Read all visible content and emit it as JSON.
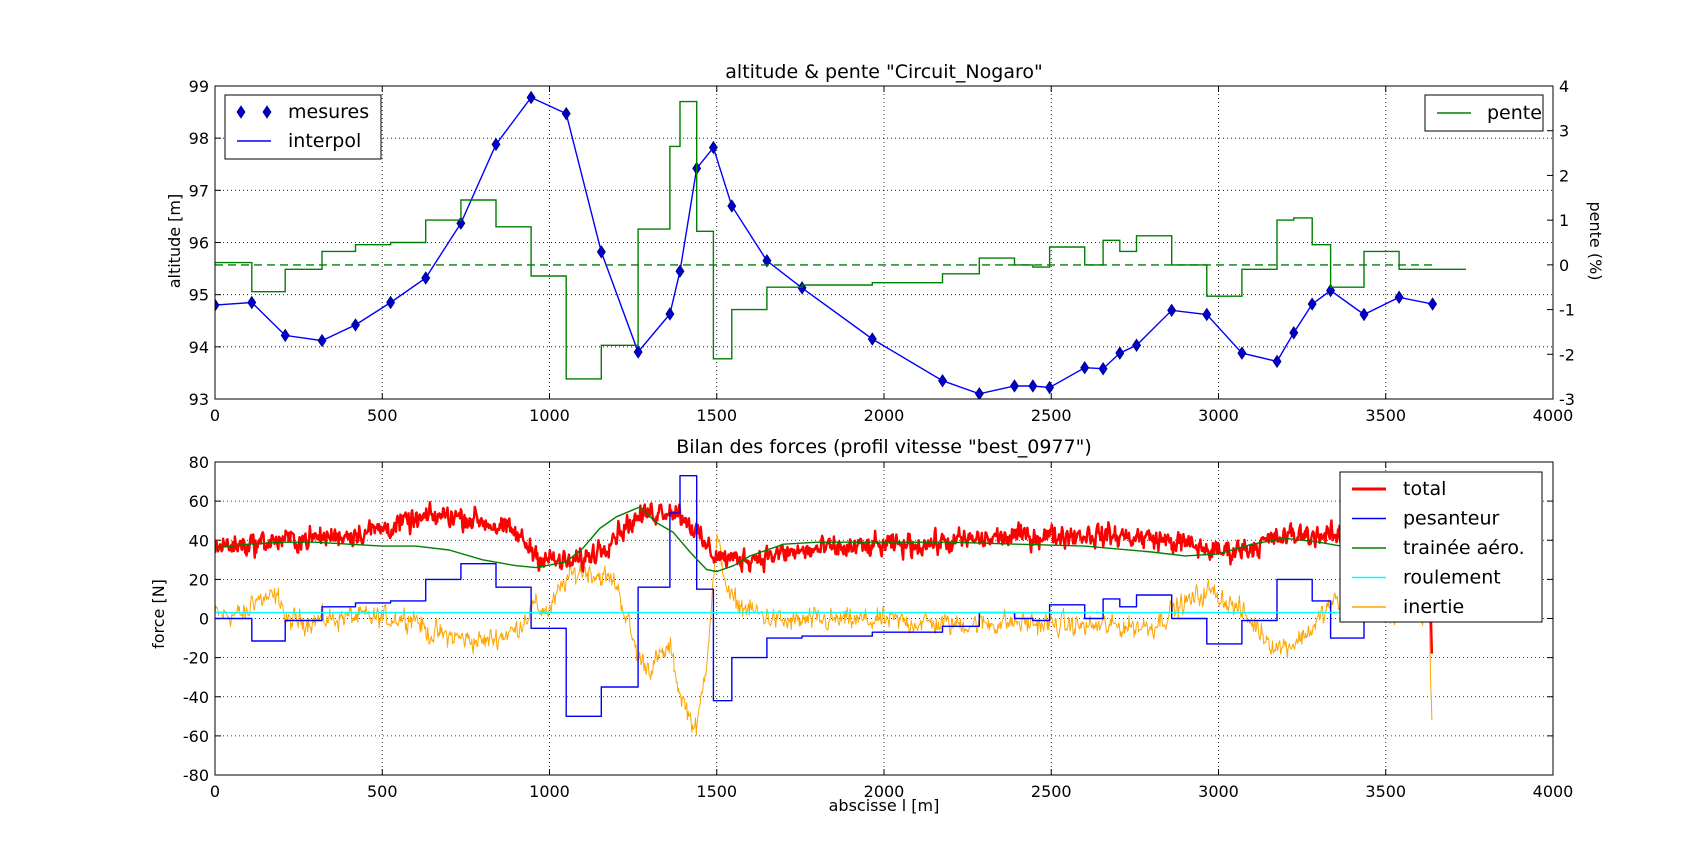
{
  "chart_data": [
    {
      "type": "line",
      "title": "altitude & pente \"Circuit_Nogaro\"",
      "xlabel": "",
      "ylabel": "altitude [m]",
      "y2label": "pente (%)",
      "xlim": [
        0,
        4000
      ],
      "ylim": [
        93,
        99
      ],
      "y2lim": [
        -3,
        4
      ],
      "xticks": [
        0,
        500,
        1000,
        1500,
        2000,
        2500,
        3000,
        3500,
        4000
      ],
      "yticks": [
        93,
        94,
        95,
        96,
        97,
        98,
        99
      ],
      "y2ticks": [
        -3,
        -2,
        -1,
        0,
        1,
        2,
        3,
        4
      ],
      "grid": true,
      "legends": [
        {
          "placement": "upper-left",
          "entries": [
            {
              "label": "mesures",
              "color": "#0000cc",
              "marker": "diamond"
            },
            {
              "label": "interpol",
              "color": "#0000ff",
              "marker": "line"
            }
          ]
        },
        {
          "placement": "upper-right",
          "entries": [
            {
              "label": "pente",
              "color": "#008000",
              "marker": "line"
            }
          ]
        }
      ],
      "series": [
        {
          "name": "mesures",
          "axis": "left",
          "color": "#0000ff",
          "style": "line+diamond",
          "x": [
            0,
            110,
            210,
            320,
            420,
            525,
            630,
            735,
            840,
            945,
            1050,
            1155,
            1265,
            1360,
            1390,
            1440,
            1490,
            1545,
            1650,
            1755,
            1965,
            2175,
            2285,
            2390,
            2445,
            2495,
            2600,
            2655,
            2705,
            2755,
            2860,
            2965,
            3070,
            3175,
            3225,
            3280,
            3335,
            3435,
            3540,
            3640
          ],
          "y": [
            94.8,
            94.85,
            94.22,
            94.12,
            94.42,
            94.85,
            95.32,
            96.37,
            97.88,
            98.78,
            98.47,
            95.82,
            93.9,
            94.63,
            95.45,
            97.42,
            97.82,
            96.7,
            95.65,
            95.13,
            94.15,
            93.35,
            93.1,
            93.25,
            93.25,
            93.22,
            93.6,
            93.58,
            93.88,
            94.03,
            94.7,
            94.62,
            93.88,
            93.72,
            94.27,
            94.82,
            95.08,
            94.62,
            94.95,
            94.82
          ]
        },
        {
          "name": "pente",
          "axis": "right",
          "color": "#008000",
          "style": "step",
          "x": [
            0,
            110,
            210,
            320,
            420,
            525,
            630,
            735,
            840,
            945,
            1050,
            1155,
            1265,
            1360,
            1390,
            1440,
            1490,
            1545,
            1650,
            1755,
            1965,
            2175,
            2285,
            2390,
            2445,
            2495,
            2600,
            2655,
            2705,
            2755,
            2860,
            2965,
            3070,
            3175,
            3225,
            3280,
            3335,
            3435,
            3540,
            3640
          ],
          "y": [
            0.05,
            -0.6,
            -0.1,
            0.3,
            0.45,
            0.5,
            1.0,
            1.45,
            0.85,
            -0.25,
            -2.55,
            -1.8,
            0.8,
            2.65,
            3.65,
            0.75,
            -2.1,
            -1.0,
            -0.5,
            -0.45,
            -0.4,
            -0.2,
            0.15,
            0.0,
            -0.05,
            0.4,
            0.0,
            0.55,
            0.3,
            0.65,
            0.0,
            -0.7,
            -0.1,
            1.0,
            1.05,
            0.45,
            -0.5,
            0.3,
            -0.1,
            -0.1
          ]
        },
        {
          "name": "",
          "axis": "right",
          "color": "#008000",
          "style": "dashed",
          "x": [
            0,
            3640
          ],
          "y": [
            0,
            0
          ]
        }
      ]
    },
    {
      "type": "line",
      "title": "Bilan des forces (profil vitesse \"best_0977\")",
      "xlabel": "abscisse l [m]",
      "ylabel": "force [N]",
      "xlim": [
        0,
        4000
      ],
      "ylim": [
        -80,
        80
      ],
      "xticks": [
        0,
        500,
        1000,
        1500,
        2000,
        2500,
        3000,
        3500,
        4000
      ],
      "yticks": [
        -80,
        -60,
        -40,
        -20,
        0,
        20,
        40,
        60,
        80
      ],
      "grid": true,
      "legend_placement": "top-right",
      "series": [
        {
          "name": "total",
          "color": "#ff0000",
          "width": 2.4,
          "noise": 4.5,
          "x": [
            0,
            100,
            200,
            300,
            400,
            500,
            600,
            700,
            800,
            900,
            960,
            1000,
            1050,
            1100,
            1150,
            1200,
            1250,
            1300,
            1350,
            1380,
            1420,
            1460,
            1500,
            1550,
            1600,
            1700,
            1800,
            1900,
            2000,
            2200,
            2400,
            2600,
            2800,
            2900,
            3000,
            3100,
            3200,
            3300,
            3400,
            3500,
            3600,
            3630,
            3638
          ],
          "y": [
            37,
            38,
            40,
            41,
            43,
            46,
            50,
            53,
            50,
            43,
            33,
            30,
            28,
            30,
            36,
            44,
            50,
            54,
            56,
            55,
            49,
            38,
            32,
            30,
            31,
            33,
            35,
            36,
            37,
            39,
            42,
            43,
            41,
            38,
            34,
            37,
            42,
            43,
            40,
            37,
            36,
            36,
            -18
          ]
        },
        {
          "name": "pesanteur",
          "color": "#0000ff",
          "width": 1.4,
          "noise": 0,
          "style": "step",
          "x": [
            0,
            110,
            210,
            320,
            420,
            525,
            630,
            735,
            840,
            945,
            1050,
            1155,
            1265,
            1360,
            1390,
            1440,
            1490,
            1545,
            1650,
            1755,
            1965,
            2175,
            2285,
            2390,
            2445,
            2495,
            2600,
            2655,
            2705,
            2755,
            2860,
            2965,
            3070,
            3175,
            3225,
            3280,
            3335,
            3435,
            3540,
            3640
          ],
          "y": [
            0,
            -11.5,
            -1,
            6,
            8,
            9,
            20,
            28,
            16,
            -5,
            -50,
            -35,
            16,
            54,
            73,
            15,
            -42,
            -20,
            -10,
            -9,
            -7,
            -4,
            3,
            0,
            -1,
            7,
            0,
            10,
            6,
            12,
            0,
            -13,
            -1,
            20,
            20,
            9,
            -10,
            5,
            -1,
            -1
          ]
        },
        {
          "name": "trainée aéro.",
          "color": "#008000",
          "width": 1.4,
          "noise": 0,
          "x": [
            0,
            100,
            200,
            300,
            400,
            500,
            600,
            700,
            800,
            900,
            960,
            1050,
            1100,
            1150,
            1200,
            1270,
            1320,
            1370,
            1420,
            1470,
            1500,
            1550,
            1600,
            1700,
            1800,
            1900,
            2000,
            2200,
            2400,
            2600,
            2800,
            2900,
            3000,
            3100,
            3200,
            3300,
            3400,
            3500,
            3600
          ],
          "y": [
            36,
            38,
            39,
            39,
            38,
            37,
            37,
            35,
            30,
            27,
            26,
            29,
            36,
            46,
            52,
            57,
            49,
            44,
            34,
            25,
            24,
            27,
            32,
            38,
            39,
            39,
            39,
            39,
            38,
            37,
            34,
            32,
            33,
            38,
            41,
            39,
            36,
            34,
            33
          ]
        },
        {
          "name": "roulement",
          "color": "#00ffff",
          "width": 1.4,
          "noise": 0,
          "x": [
            0,
            3640
          ],
          "y": [
            3,
            3
          ]
        },
        {
          "name": "inertie",
          "color": "#ffa500",
          "width": 1.0,
          "noise": 4.5,
          "x": [
            0,
            100,
            110,
            200,
            210,
            250,
            300,
            400,
            500,
            600,
            630,
            700,
            800,
            900,
            950,
            1000,
            1050,
            1100,
            1150,
            1200,
            1265,
            1300,
            1360,
            1390,
            1440,
            1470,
            1500,
            1540,
            1600,
            1700,
            1800,
            2000,
            2200,
            2400,
            2500,
            2600,
            2700,
            2800,
            2870,
            2970,
            3000,
            3070,
            3175,
            3230,
            3280,
            3340,
            3400,
            3500,
            3600,
            3630,
            3638
          ],
          "y": [
            2,
            2,
            10,
            10,
            -2,
            -1,
            -1,
            1,
            0,
            1,
            -7,
            -9,
            -12,
            -6,
            6,
            4,
            20,
            25,
            22,
            18,
            -20,
            -25,
            -15,
            -38,
            -58,
            -20,
            40,
            10,
            4,
            -2,
            -1,
            -1,
            -3,
            -2,
            -3,
            -4,
            -4,
            -4,
            5,
            14,
            12,
            3,
            -15,
            -12,
            -5,
            8,
            7,
            3,
            1,
            1,
            -52
          ]
        }
      ]
    }
  ]
}
